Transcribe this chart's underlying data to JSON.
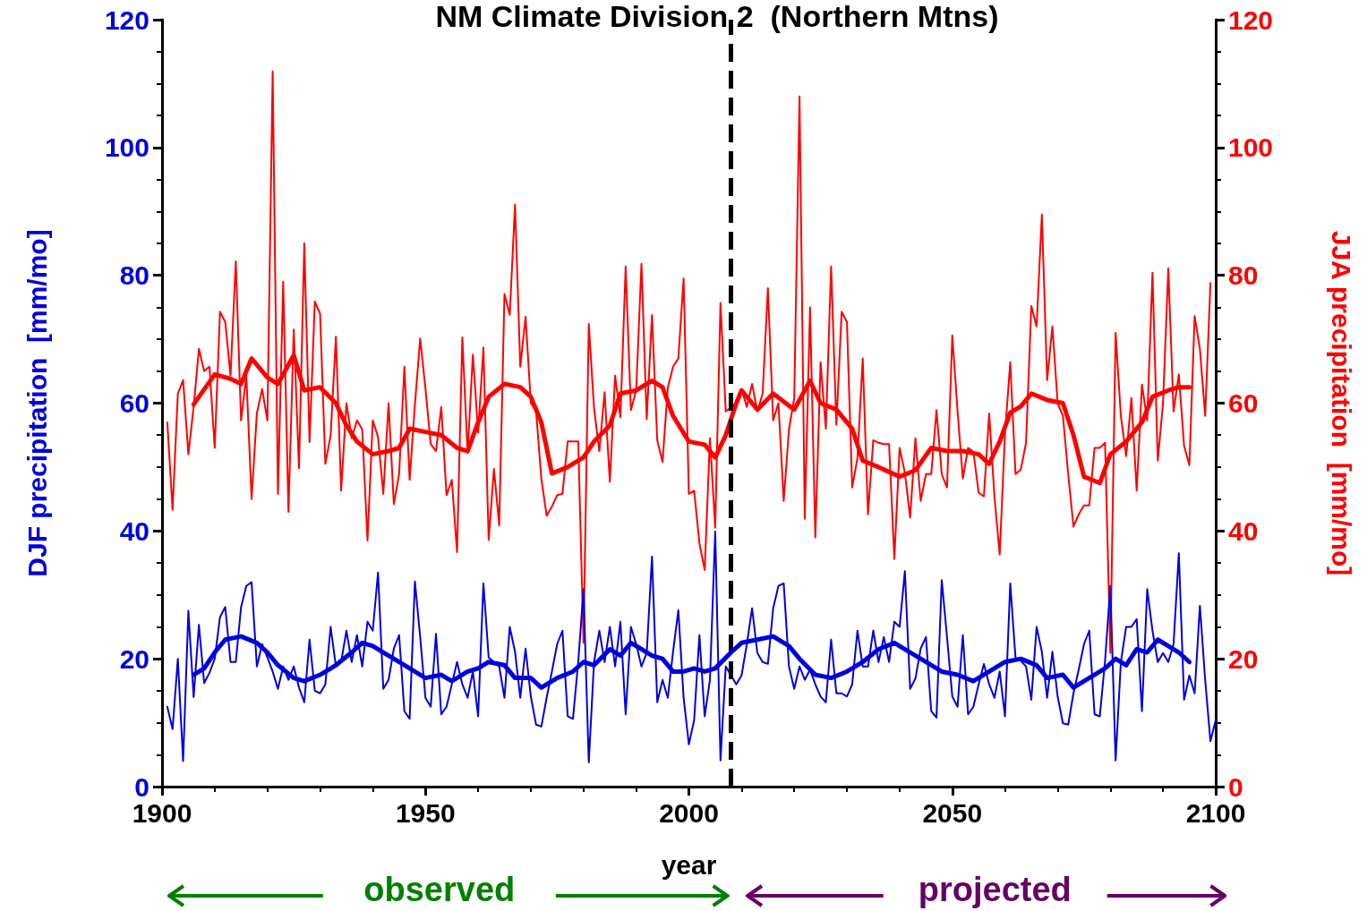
{
  "chart_data": {
    "type": "line",
    "title": "NM Climate Division 2  (Northern Mtns)",
    "xlabel": "year",
    "ylabel": "DJF precipitation  [mm/mo]",
    "y2label": "JJA precipitation  [mm/mo]",
    "xlim": [
      1900,
      2100
    ],
    "xticks": [
      1900,
      1950,
      2000,
      2050,
      2100
    ],
    "ylim": [
      0,
      120
    ],
    "yticks": [
      0,
      20,
      40,
      60,
      80,
      100,
      120
    ],
    "y2lim": [
      0,
      120
    ],
    "y2ticks": [
      0,
      20,
      40,
      60,
      80,
      100,
      120
    ],
    "grid": false,
    "marker": "none",
    "line_style": "solid",
    "ref_lines": [
      {
        "axis": "x",
        "value": 2008,
        "color": "#000000",
        "line_style": "dashed"
      }
    ],
    "annotations": [
      "observed",
      "projected"
    ],
    "series": [
      {
        "color": "#ff0000",
        "axis": "y2",
        "x": [
          1901,
          1902,
          1903,
          1904,
          1905,
          1906,
          1907,
          1908,
          1909,
          1910,
          1911,
          1912,
          1913,
          1914,
          1915,
          1916,
          1917,
          1918,
          1919,
          1920,
          1921,
          1922,
          1923,
          1924,
          1925,
          1926,
          1927,
          1928,
          1929,
          1930,
          1931,
          1932,
          1933,
          1934,
          1935,
          1936,
          1937,
          1938,
          1939,
          1940,
          1941,
          1942,
          1943,
          1944,
          1945,
          1946,
          1947,
          1948,
          1949,
          1950,
          1951,
          1952,
          1953,
          1954,
          1955,
          1956,
          1957,
          1958,
          1959,
          1960,
          1961,
          1962,
          1963,
          1964,
          1965,
          1966,
          1967,
          1968,
          1969,
          1970,
          1971,
          1972,
          1973,
          1974,
          1975,
          1976,
          1977,
          1978,
          1979,
          1980,
          1981,
          1982,
          1983,
          1984,
          1985,
          1986,
          1987,
          1988,
          1989,
          1990,
          1991,
          1992,
          1993,
          1994,
          1995,
          1996,
          1997,
          1998,
          1999,
          2000,
          2001,
          2002,
          2003,
          2004,
          2005,
          2006,
          2007,
          2009,
          2010,
          2011,
          2012,
          2013,
          2014,
          2015,
          2016,
          2017,
          2018,
          2019,
          2020,
          2021,
          2022,
          2023,
          2024,
          2025,
          2026,
          2027,
          2028,
          2029,
          2030,
          2031,
          2032,
          2033,
          2034,
          2035,
          2036,
          2037,
          2038,
          2039,
          2040,
          2041,
          2042,
          2043,
          2044,
          2045,
          2046,
          2047,
          2048,
          2049,
          2050,
          2051,
          2052,
          2053,
          2054,
          2055,
          2056,
          2057,
          2058,
          2059,
          2060,
          2061,
          2062,
          2063,
          2064,
          2065,
          2066,
          2067,
          2068,
          2069,
          2070,
          2071,
          2072,
          2073,
          2074,
          2075,
          2076,
          2077,
          2078,
          2079,
          2080,
          2081,
          2082,
          2083,
          2084,
          2085,
          2086,
          2087,
          2088,
          2089,
          2090,
          2091,
          2092,
          2093,
          2094,
          2095,
          2096,
          2097,
          2098,
          2099
        ],
        "values": [
          57,
          43.3,
          61.5,
          63.6,
          52,
          59.4,
          68.5,
          65,
          65.7,
          53,
          74.3,
          72.7,
          64.3,
          82.2,
          57.3,
          64.3,
          45,
          58.4,
          62.2,
          57.3,
          111.9,
          45.8,
          79,
          43,
          71.5,
          49.8,
          85,
          53.9,
          75.9,
          74,
          50.5,
          54.9,
          70.4,
          46.3,
          60,
          54.5,
          57.3,
          55.9,
          38.5,
          57.3,
          54.7,
          45.8,
          60,
          44.2,
          48.9,
          65.7,
          48,
          59.8,
          70.1,
          62.3,
          53.6,
          52.5,
          59.4,
          45.6,
          48,
          36.7,
          70.3,
          52.2,
          67.6,
          55.4,
          68.7,
          38.6,
          49.7,
          40.9,
          77.1,
          73.8,
          91.1,
          65.7,
          73.5,
          60,
          58.7,
          48.2,
          42.4,
          43.8,
          45.6,
          45.8,
          54,
          54,
          54,
          22.5,
          72.4,
          59.2,
          52.5,
          61.7,
          47.7,
          64.3,
          57.8,
          81.4,
          58.9,
          62,
          81.8,
          57.5,
          73.8,
          54.2,
          50.8,
          62.4,
          65.7,
          67,
          79.5,
          45.8,
          46.3,
          38.1,
          33.9,
          54.5,
          40.5,
          75.7,
          58.7,
          60,
          62.2,
          59.4,
          63,
          58.7,
          61.5,
          78,
          57.3,
          60,
          44.7,
          55.9,
          60.8,
          108,
          41.9,
          75,
          39,
          66.4,
          56,
          81.4,
          56.6,
          74.3,
          72.7,
          46.8,
          51.4,
          67,
          42.6,
          54.2,
          53.8,
          53.6,
          53.6,
          35.6,
          53,
          49.1,
          42.1,
          54.5,
          44.7,
          48.9,
          48.9,
          58.9,
          48.9,
          46.8,
          70.6,
          58.7,
          48.2,
          53,
          52.4,
          46,
          45.4,
          58.4,
          45.4,
          36.3,
          55.2,
          66.4,
          48.9,
          49.6,
          53.8,
          75.2,
          72,
          89.5,
          63.6,
          72,
          60,
          58,
          48.9,
          40.7,
          42.6,
          44,
          44,
          53,
          53,
          53.8,
          20.9,
          71,
          58,
          51.7,
          60.8,
          46.3,
          62.9,
          57.3,
          80.4,
          51,
          60,
          81.1,
          58.7,
          64.5,
          53.3,
          50.3,
          73.6,
          68.5,
          58,
          78.8
        ]
      },
      {
        "color": "#ff0000",
        "axis": "y2",
        "x": [
          1906,
          1910,
          1913,
          1915,
          1917,
          1920,
          1922,
          1925,
          1927,
          1930,
          1933,
          1935,
          1937,
          1940,
          1943,
          1945,
          1947,
          1950,
          1953,
          1956,
          1958,
          1960,
          1962,
          1965,
          1968,
          1970,
          1972,
          1974,
          1977,
          1980,
          1982,
          1985,
          1987,
          1990,
          1993,
          1995,
          1997,
          2000,
          2003,
          2005,
          2007,
          2009,
          2010,
          2013,
          2016,
          2020,
          2023,
          2025,
          2028,
          2031,
          2033,
          2036,
          2040,
          2043,
          2046,
          2049,
          2052,
          2055,
          2057,
          2059,
          2061,
          2063,
          2065,
          2068,
          2071,
          2073,
          2075,
          2078,
          2080,
          2083,
          2086,
          2088,
          2091,
          2093,
          2095
        ],
        "values": [
          59.8,
          64.5,
          63.8,
          63,
          67,
          64,
          63,
          67.5,
          62,
          62.5,
          60,
          56.5,
          54,
          52,
          52.5,
          53,
          56,
          55.5,
          55,
          53,
          52.5,
          57,
          61,
          63,
          62.5,
          61,
          57,
          49,
          50,
          51.5,
          54,
          56.5,
          61.5,
          62,
          63.5,
          62.5,
          58,
          54,
          53.5,
          51.5,
          55,
          60,
          62,
          59,
          61.5,
          59,
          63.5,
          60,
          59,
          56,
          51,
          50,
          48.5,
          49.5,
          53,
          52.5,
          52.5,
          52,
          50.5,
          54,
          58.5,
          59.5,
          61.5,
          60.5,
          60,
          55,
          48.5,
          47.5,
          52,
          54,
          57,
          61,
          62,
          62.5,
          62.5
        ]
      },
      {
        "color": "#0000dd",
        "x": [
          1901,
          1902,
          1903,
          1904,
          1905,
          1906,
          1907,
          1908,
          1909,
          1910,
          1911,
          1912,
          1913,
          1914,
          1915,
          1916,
          1917,
          1918,
          1919,
          1920,
          1921,
          1922,
          1923,
          1924,
          1925,
          1926,
          1927,
          1928,
          1929,
          1930,
          1931,
          1932,
          1933,
          1934,
          1935,
          1936,
          1937,
          1938,
          1939,
          1940,
          1941,
          1942,
          1943,
          1944,
          1945,
          1946,
          1947,
          1948,
          1949,
          1950,
          1951,
          1952,
          1953,
          1954,
          1955,
          1956,
          1957,
          1958,
          1959,
          1960,
          1961,
          1962,
          1963,
          1964,
          1965,
          1966,
          1967,
          1968,
          1969,
          1970,
          1971,
          1972,
          1973,
          1974,
          1975,
          1976,
          1977,
          1978,
          1979,
          1980,
          1981,
          1982,
          1983,
          1984,
          1985,
          1986,
          1987,
          1988,
          1989,
          1990,
          1991,
          1992,
          1993,
          1994,
          1995,
          1996,
          1997,
          1998,
          1999,
          2000,
          2001,
          2002,
          2003,
          2004,
          2005,
          2006,
          2007,
          2009,
          2010,
          2011,
          2012,
          2013,
          2014,
          2015,
          2016,
          2017,
          2018,
          2019,
          2020,
          2021,
          2022,
          2023,
          2024,
          2025,
          2026,
          2027,
          2028,
          2029,
          2030,
          2031,
          2032,
          2033,
          2034,
          2035,
          2036,
          2037,
          2038,
          2039,
          2040,
          2041,
          2042,
          2043,
          2044,
          2045,
          2046,
          2047,
          2048,
          2049,
          2050,
          2051,
          2052,
          2053,
          2054,
          2055,
          2056,
          2057,
          2058,
          2059,
          2060,
          2061,
          2062,
          2063,
          2064,
          2065,
          2066,
          2067,
          2068,
          2069,
          2070,
          2071,
          2072,
          2073,
          2074,
          2075,
          2076,
          2077,
          2078,
          2079,
          2080,
          2081,
          2082,
          2083,
          2084,
          2085,
          2086,
          2087,
          2088,
          2089,
          2090,
          2091,
          2092,
          2093,
          2094,
          2095,
          2096,
          2097,
          2098,
          2099,
          2100
        ],
        "values": [
          12.5,
          9,
          20,
          4,
          27.5,
          14,
          25.3,
          16.2,
          17.8,
          20,
          26.5,
          28.1,
          19.5,
          19.5,
          28.1,
          31.4,
          32,
          18.8,
          22.3,
          20.2,
          18,
          15.3,
          18.8,
          16.7,
          18.8,
          15.5,
          13.2,
          23,
          15,
          14.6,
          16,
          25,
          18.8,
          19.5,
          24.4,
          19.5,
          23.7,
          18.8,
          25.8,
          24.4,
          33.5,
          15.3,
          16.7,
          21.6,
          23.7,
          11.8,
          10.6,
          32.1,
          23.4,
          13.9,
          12.5,
          23.9,
          11.3,
          12.5,
          16,
          19.5,
          16,
          13.9,
          18,
          11,
          31.8,
          20.2,
          19.5,
          18.8,
          13.9,
          25,
          21.1,
          13.9,
          21.6,
          14.1,
          9.7,
          9.4,
          13.9,
          18,
          22.3,
          24.4,
          11,
          10.6,
          19.5,
          30.9,
          3.8,
          19.5,
          24.4,
          19.5,
          25,
          18.8,
          25.8,
          11.3,
          25,
          22.3,
          18.8,
          20.9,
          36,
          13.2,
          16.7,
          13.9,
          21.1,
          27.6,
          13.9,
          6.6,
          10.4,
          23.7,
          11,
          16.7,
          39.9,
          4.1,
          18.8,
          16,
          17.4,
          22.3,
          27.9,
          20.9,
          19.5,
          19.2,
          27.9,
          31.4,
          31.8,
          18.8,
          15.3,
          18.8,
          16.7,
          18.3,
          16,
          14.1,
          13.2,
          23,
          14.6,
          14.6,
          14.1,
          16,
          24.4,
          18.8,
          18.8,
          24.4,
          19.5,
          23.4,
          19.5,
          25.8,
          25,
          33.7,
          15.3,
          16.9,
          21.6,
          23.4,
          11.8,
          10.8,
          32.3,
          23.4,
          14.1,
          12.5,
          23.7,
          11.3,
          12.5,
          16,
          19.2,
          16,
          13.9,
          18,
          11,
          31.8,
          20.2,
          19.7,
          18.8,
          13.6,
          25,
          21.1,
          13.9,
          21.1,
          14.1,
          9.9,
          9.7,
          14.6,
          18.3,
          22.3,
          24.4,
          11.3,
          11,
          19.7,
          31.4,
          4.1,
          19.5,
          25,
          25,
          26.2,
          11.8,
          30.9,
          24.4,
          19.5,
          20.9,
          19.5,
          22.3,
          36.5,
          13.6,
          17.4,
          14.6,
          28.3,
          16.7,
          7.1,
          10.4
        ]
      },
      {
        "color": "#0000dd",
        "x": [
          1906,
          1908,
          1910,
          1912,
          1915,
          1918,
          1920,
          1922,
          1925,
          1927,
          1930,
          1933,
          1936,
          1938,
          1940,
          1942,
          1945,
          1947,
          1950,
          1953,
          1955,
          1958,
          1960,
          1962,
          1965,
          1967,
          1970,
          1972,
          1975,
          1978,
          1980,
          1982,
          1985,
          1987,
          1989,
          1991,
          1993,
          1995,
          1997,
          1999,
          2001,
          2003,
          2005,
          2008,
          2010,
          2013,
          2016,
          2019,
          2021,
          2024,
          2027,
          2030,
          2033,
          2036,
          2039,
          2042,
          2045,
          2048,
          2051,
          2054,
          2057,
          2060,
          2063,
          2066,
          2068,
          2071,
          2073,
          2076,
          2079,
          2081,
          2083,
          2085,
          2087,
          2089,
          2091,
          2093,
          2095
        ],
        "values": [
          17.5,
          18.5,
          21,
          23,
          23.5,
          22.5,
          21,
          19,
          17,
          16.5,
          17.5,
          19,
          21,
          22.5,
          22,
          21,
          19.5,
          18.5,
          17,
          17.5,
          16.5,
          18,
          18.5,
          19.5,
          19,
          17,
          17,
          15.5,
          17,
          18,
          19.5,
          19,
          21.5,
          20.5,
          22.5,
          21.5,
          20.5,
          20,
          18,
          18,
          18.5,
          18,
          18.5,
          21,
          22.5,
          23,
          23.5,
          22,
          20,
          17.5,
          17,
          18,
          19.5,
          21.5,
          22.5,
          21,
          19.5,
          18,
          17.5,
          16.5,
          18,
          19.5,
          20,
          19,
          17,
          17.5,
          15.5,
          17,
          18.5,
          20,
          19,
          21.5,
          21,
          23,
          22,
          21,
          19.5
        ]
      }
    ]
  }
}
